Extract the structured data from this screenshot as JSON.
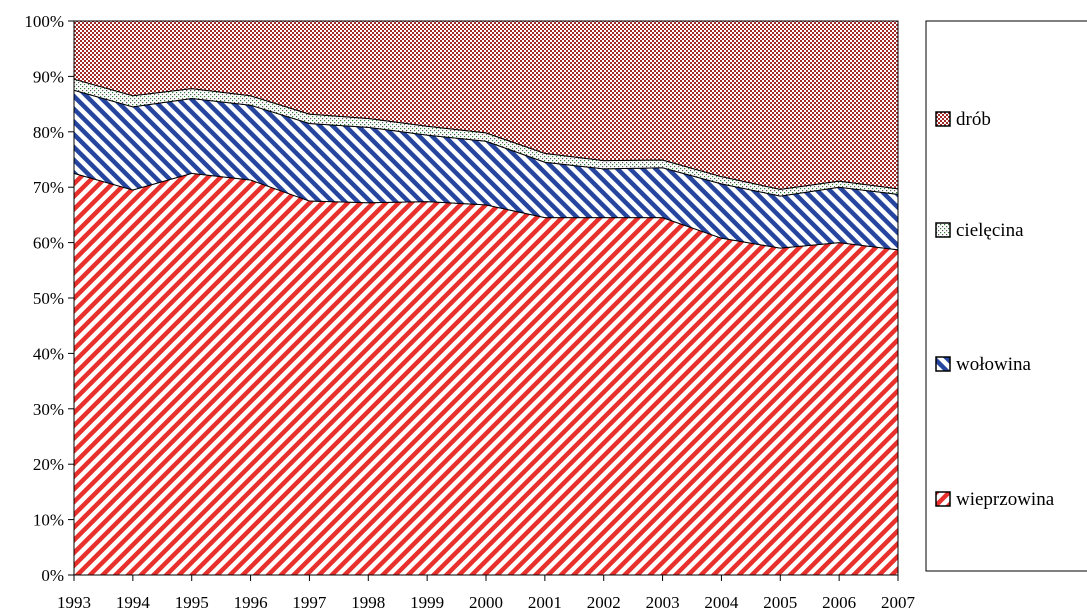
{
  "chart_data": {
    "type": "area",
    "stacked": true,
    "normalized": true,
    "x": [
      "1993",
      "1994",
      "1995",
      "1996",
      "1997",
      "1998",
      "1999",
      "2000",
      "2001",
      "2002",
      "2003",
      "2004",
      "2005",
      "2006",
      "2007"
    ],
    "y_ticks": [
      "0%",
      "10%",
      "20%",
      "30%",
      "40%",
      "50%",
      "60%",
      "70%",
      "80%",
      "90%",
      "100%"
    ],
    "ylim": [
      0,
      100
    ],
    "grid": false,
    "legend_position": "right",
    "series": [
      {
        "name": "wieprzowina",
        "color": "#e02a2a",
        "pattern": "diagonal-stripes-red",
        "values": [
          72.5,
          69.5,
          72.5,
          71.3,
          67.5,
          67.2,
          67.4,
          66.8,
          64.5,
          64.5,
          64.5,
          60.8,
          59.0,
          60.0,
          58.7
        ]
      },
      {
        "name": "wołowina",
        "color": "#1f3f9f",
        "pattern": "diagonal-stripes-blue",
        "values": [
          15.0,
          15.0,
          13.5,
          13.5,
          14.0,
          13.6,
          12.0,
          11.5,
          10.0,
          8.8,
          9.0,
          9.8,
          9.4,
          10.0,
          10.0
        ]
      },
      {
        "name": "cielęcina",
        "color": "#2e7d32",
        "pattern": "dotted-light",
        "values": [
          2.0,
          2.0,
          1.8,
          1.7,
          1.7,
          1.6,
          1.6,
          1.5,
          1.6,
          1.5,
          1.4,
          1.3,
          1.2,
          1.1,
          1.0
        ]
      },
      {
        "name": "drób",
        "color": "#a83232",
        "pattern": "checker-dark-red",
        "values": [
          10.5,
          13.5,
          12.2,
          13.5,
          16.8,
          17.6,
          19.0,
          20.2,
          23.9,
          25.2,
          25.1,
          28.1,
          30.4,
          28.9,
          30.3
        ]
      }
    ],
    "legend_order": [
      "drób",
      "cielęcina",
      "wołowina",
      "wieprzowina"
    ]
  }
}
